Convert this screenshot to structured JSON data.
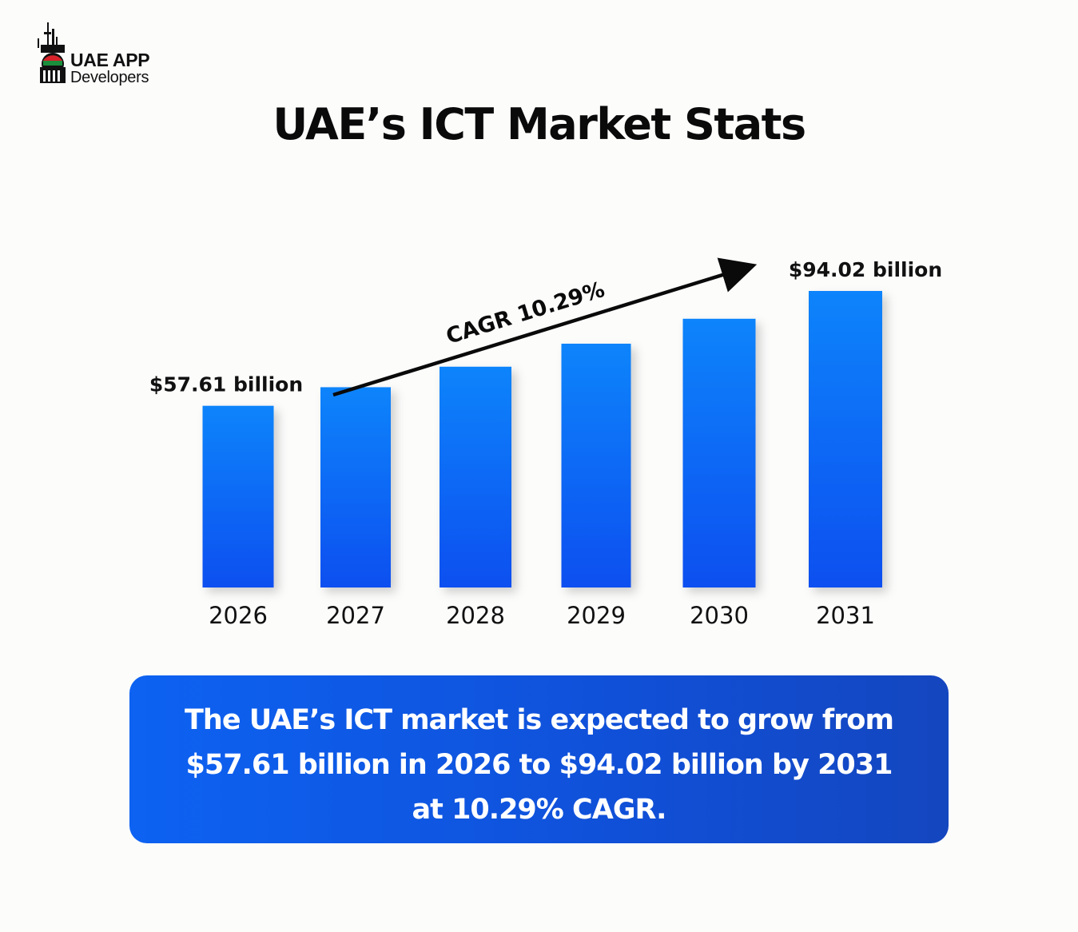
{
  "brand": {
    "line1": "UAE APP",
    "line2": "Developers",
    "logo_icon": "skyline-flag-icon",
    "flag_colors": [
      "#d8232a",
      "#1a8f3c",
      "#111111"
    ]
  },
  "title": "UAE’s ICT Market Stats",
  "chart_data": {
    "type": "bar",
    "categories": [
      "2026",
      "2027",
      "2028",
      "2029",
      "2030",
      "2031"
    ],
    "values": [
      57.61,
      63.5,
      70.0,
      77.3,
      85.2,
      94.02
    ],
    "unit": "billion USD",
    "ylim": [
      0,
      100
    ],
    "grid": false,
    "bar_color_top": "#0d84fb",
    "bar_color_bottom": "#0a4ff0",
    "data_labels": [
      {
        "category": "2026",
        "text": "$57.61 billion"
      },
      {
        "category": "2031",
        "text": "$94.02 billion"
      }
    ],
    "annotation": {
      "text": "CAGR 10.29%",
      "arrow_from": "2027",
      "arrow_to": "2030"
    }
  },
  "summary": {
    "line1": "The UAE’s ICT market is expected to grow from",
    "line2": "$57.61 billion in 2026 to $94.02 billion by 2031",
    "line3": "at 10.29% CAGR."
  }
}
